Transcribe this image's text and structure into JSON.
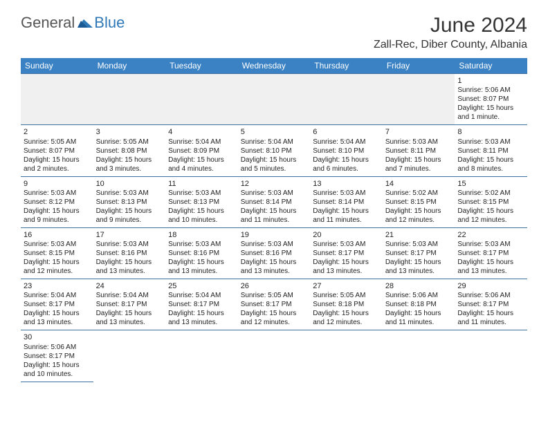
{
  "brand": {
    "part1": "General",
    "part2": "Blue",
    "logo_color": "#2f78b7"
  },
  "title": "June 2024",
  "location": "Zall-Rec, Diber County, Albania",
  "colors": {
    "header_bg": "#3b82c4",
    "header_text": "#ffffff",
    "border": "#3b6fa0",
    "alt_bg": "#f0f0f0"
  },
  "daynames": [
    "Sunday",
    "Monday",
    "Tuesday",
    "Wednesday",
    "Thursday",
    "Friday",
    "Saturday"
  ],
  "startOffset": 6,
  "days": [
    {
      "n": 1,
      "sr": "5:06 AM",
      "ss": "8:07 PM",
      "dl": "15 hours and 1 minute."
    },
    {
      "n": 2,
      "sr": "5:05 AM",
      "ss": "8:07 PM",
      "dl": "15 hours and 2 minutes."
    },
    {
      "n": 3,
      "sr": "5:05 AM",
      "ss": "8:08 PM",
      "dl": "15 hours and 3 minutes."
    },
    {
      "n": 4,
      "sr": "5:04 AM",
      "ss": "8:09 PM",
      "dl": "15 hours and 4 minutes."
    },
    {
      "n": 5,
      "sr": "5:04 AM",
      "ss": "8:10 PM",
      "dl": "15 hours and 5 minutes."
    },
    {
      "n": 6,
      "sr": "5:04 AM",
      "ss": "8:10 PM",
      "dl": "15 hours and 6 minutes."
    },
    {
      "n": 7,
      "sr": "5:03 AM",
      "ss": "8:11 PM",
      "dl": "15 hours and 7 minutes."
    },
    {
      "n": 8,
      "sr": "5:03 AM",
      "ss": "8:11 PM",
      "dl": "15 hours and 8 minutes."
    },
    {
      "n": 9,
      "sr": "5:03 AM",
      "ss": "8:12 PM",
      "dl": "15 hours and 9 minutes."
    },
    {
      "n": 10,
      "sr": "5:03 AM",
      "ss": "8:13 PM",
      "dl": "15 hours and 9 minutes."
    },
    {
      "n": 11,
      "sr": "5:03 AM",
      "ss": "8:13 PM",
      "dl": "15 hours and 10 minutes."
    },
    {
      "n": 12,
      "sr": "5:03 AM",
      "ss": "8:14 PM",
      "dl": "15 hours and 11 minutes."
    },
    {
      "n": 13,
      "sr": "5:03 AM",
      "ss": "8:14 PM",
      "dl": "15 hours and 11 minutes."
    },
    {
      "n": 14,
      "sr": "5:02 AM",
      "ss": "8:15 PM",
      "dl": "15 hours and 12 minutes."
    },
    {
      "n": 15,
      "sr": "5:02 AM",
      "ss": "8:15 PM",
      "dl": "15 hours and 12 minutes."
    },
    {
      "n": 16,
      "sr": "5:03 AM",
      "ss": "8:15 PM",
      "dl": "15 hours and 12 minutes."
    },
    {
      "n": 17,
      "sr": "5:03 AM",
      "ss": "8:16 PM",
      "dl": "15 hours and 13 minutes."
    },
    {
      "n": 18,
      "sr": "5:03 AM",
      "ss": "8:16 PM",
      "dl": "15 hours and 13 minutes."
    },
    {
      "n": 19,
      "sr": "5:03 AM",
      "ss": "8:16 PM",
      "dl": "15 hours and 13 minutes."
    },
    {
      "n": 20,
      "sr": "5:03 AM",
      "ss": "8:17 PM",
      "dl": "15 hours and 13 minutes."
    },
    {
      "n": 21,
      "sr": "5:03 AM",
      "ss": "8:17 PM",
      "dl": "15 hours and 13 minutes."
    },
    {
      "n": 22,
      "sr": "5:03 AM",
      "ss": "8:17 PM",
      "dl": "15 hours and 13 minutes."
    },
    {
      "n": 23,
      "sr": "5:04 AM",
      "ss": "8:17 PM",
      "dl": "15 hours and 13 minutes."
    },
    {
      "n": 24,
      "sr": "5:04 AM",
      "ss": "8:17 PM",
      "dl": "15 hours and 13 minutes."
    },
    {
      "n": 25,
      "sr": "5:04 AM",
      "ss": "8:17 PM",
      "dl": "15 hours and 13 minutes."
    },
    {
      "n": 26,
      "sr": "5:05 AM",
      "ss": "8:17 PM",
      "dl": "15 hours and 12 minutes."
    },
    {
      "n": 27,
      "sr": "5:05 AM",
      "ss": "8:18 PM",
      "dl": "15 hours and 12 minutes."
    },
    {
      "n": 28,
      "sr": "5:06 AM",
      "ss": "8:18 PM",
      "dl": "15 hours and 11 minutes."
    },
    {
      "n": 29,
      "sr": "5:06 AM",
      "ss": "8:17 PM",
      "dl": "15 hours and 11 minutes."
    },
    {
      "n": 30,
      "sr": "5:06 AM",
      "ss": "8:17 PM",
      "dl": "15 hours and 10 minutes."
    }
  ],
  "labels": {
    "sunrise": "Sunrise:",
    "sunset": "Sunset:",
    "daylight": "Daylight:"
  }
}
